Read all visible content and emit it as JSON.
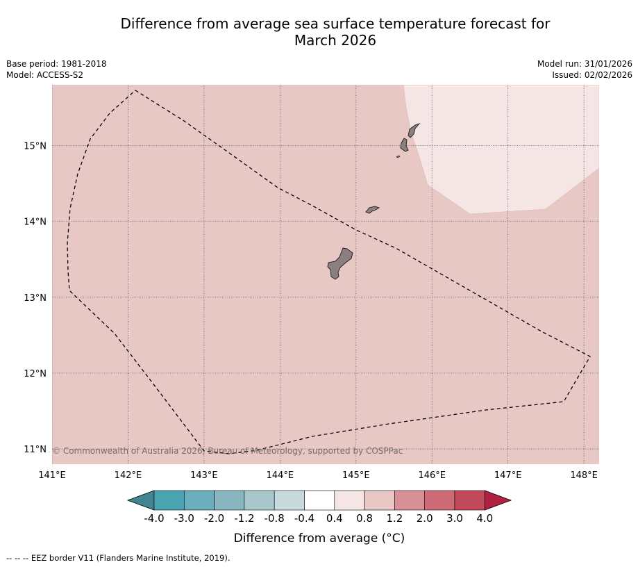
{
  "header": {
    "title_line1": "Difference from average sea surface temperature forecast for",
    "title_line2": "March 2026",
    "base_period": "Base period: 1981-2018",
    "model": "Model: ACCESS-S2",
    "model_run": "Model run: 31/01/2026",
    "issued": "Issued: 02/02/2026"
  },
  "map": {
    "lon_ticks": [
      "141°E",
      "142°E",
      "143°E",
      "144°E",
      "145°E",
      "146°E",
      "147°E",
      "148°E"
    ],
    "lat_ticks": [
      "15°N",
      "14°N",
      "13°N",
      "12°N",
      "11°N"
    ],
    "lon_range": [
      141.0,
      148.2
    ],
    "lat_range": [
      10.8,
      15.8
    ],
    "background_anomaly": "0.8 to 1.2",
    "warm_patch_anomaly": "0.4 to 0.8",
    "copyright": "© Commonwealth of Australia 2026, Bureau of Meteorology, supported by COSPPac"
  },
  "colorbar": {
    "tick_labels": [
      "-4.0",
      "-3.0",
      "-2.0",
      "-1.2",
      "-0.8",
      "-0.4",
      "0.4",
      "0.8",
      "1.2",
      "2.0",
      "3.0",
      "4.0"
    ],
    "colors": [
      "#4aa4b2",
      "#6baebd",
      "#8ab6c2",
      "#a8c7cb",
      "#c8dade",
      "#ffffff",
      "#f5e6e5",
      "#e9c7c3",
      "#d98f96",
      "#cf6b77",
      "#c24a5c"
    ],
    "under_color": "#41858f",
    "over_color": "#b02040",
    "label": "Difference from average (°C)"
  },
  "legend": {
    "eez_text": "--  --  -- EEZ border V11 (Flanders Marine Institute, 2019)."
  },
  "colors": {
    "ocean_anomaly": "#e8c8c4",
    "warm_patch": "#f5e6e5",
    "land": "#8c7f80",
    "grid": "#555555"
  }
}
